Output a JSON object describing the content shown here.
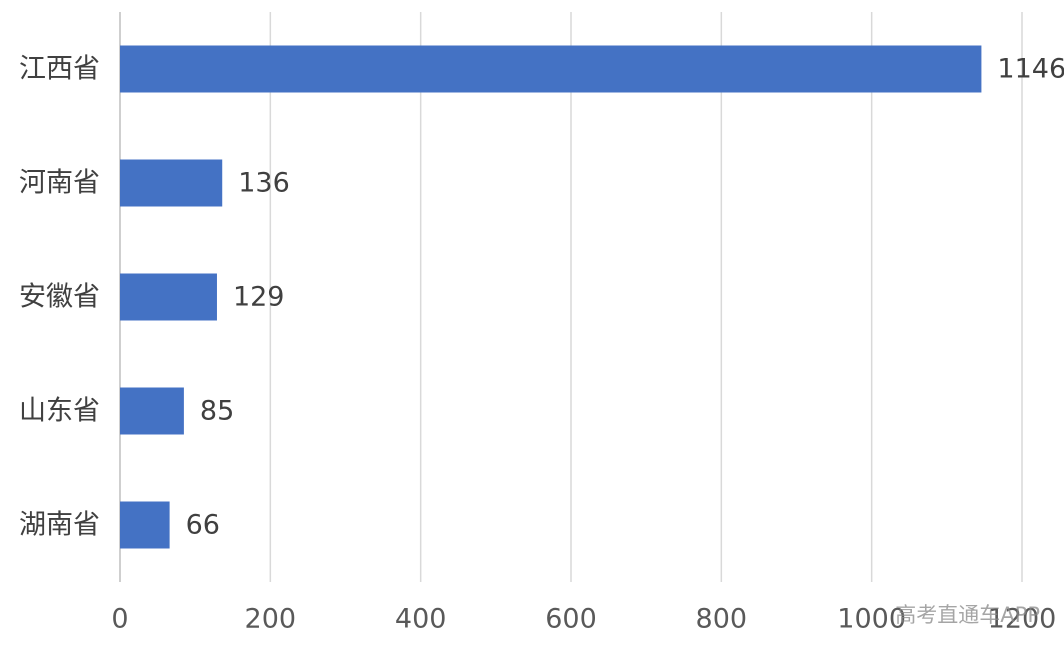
{
  "chart_data": {
    "type": "bar",
    "orientation": "horizontal",
    "categories": [
      "江西省",
      "河南省",
      "安徽省",
      "山东省",
      "湖南省"
    ],
    "values": [
      1146,
      136,
      129,
      85,
      66
    ],
    "color": "#4472c4",
    "xlim": [
      0,
      1200
    ],
    "xticks": [
      0,
      200,
      400,
      600,
      800,
      1000,
      1200
    ],
    "grid": true,
    "watermark": "高考直通车APP"
  }
}
